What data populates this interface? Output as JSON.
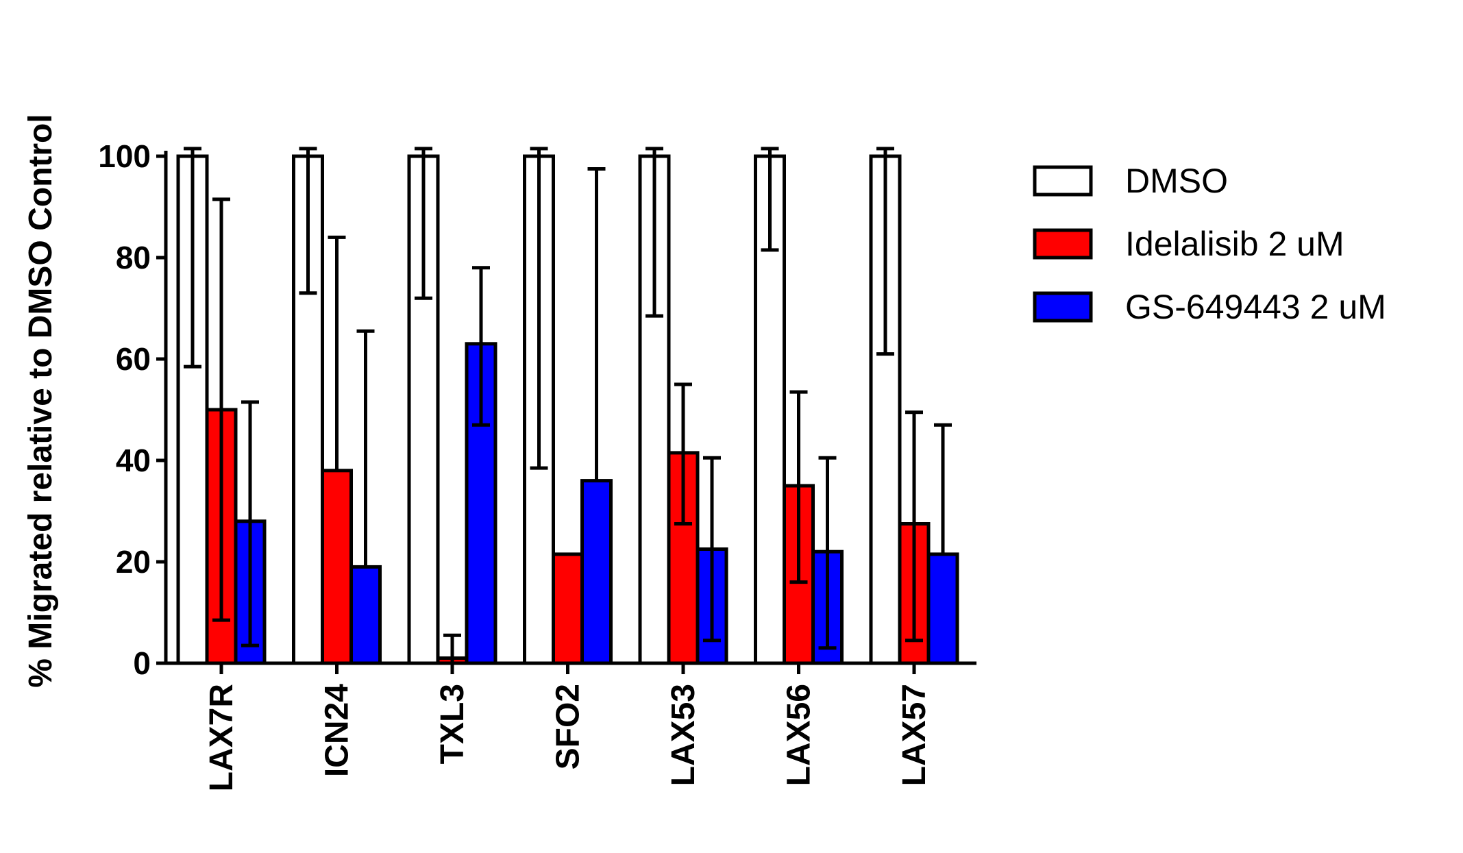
{
  "chart_data": {
    "type": "bar",
    "title": "",
    "xlabel": "",
    "ylabel": "% Migrated relative to  DMSO Control",
    "ylim": [
      0,
      100
    ],
    "yticks": [
      0,
      20,
      40,
      60,
      80,
      100
    ],
    "grid": false,
    "legend_position": "right",
    "categories": [
      "LAX7R",
      "ICN24",
      "TXL3",
      "SFO2",
      "LAX53",
      "LAX56",
      "LAX57"
    ],
    "series": [
      {
        "name": "DMSO",
        "color": "#ffffff",
        "values": [
          100,
          100,
          100,
          100,
          100,
          100,
          100
        ],
        "error_low": [
          58.5,
          73,
          72,
          38.5,
          68.5,
          81.5,
          61
        ],
        "error_high": [
          101.5,
          101.5,
          101.5,
          101.5,
          101.5,
          101.5,
          101.5
        ]
      },
      {
        "name": "Idelalisib 2 uM",
        "color": "#ff0000",
        "values": [
          50,
          38,
          1,
          21.5,
          41.5,
          35,
          27.5
        ],
        "error_low": [
          8.5,
          null,
          0,
          null,
          27.5,
          16,
          4.5
        ],
        "error_high": [
          91.5,
          84,
          5.5,
          null,
          55,
          53.5,
          49.5
        ]
      },
      {
        "name": "GS-649443 2 uM",
        "color": "#0000ff",
        "values": [
          28,
          19,
          63,
          36,
          22.5,
          22,
          21.5
        ],
        "error_low": [
          3.5,
          null,
          47,
          null,
          4.5,
          3,
          null
        ],
        "error_high": [
          51.5,
          65.5,
          78,
          97.5,
          40.5,
          40.5,
          47
        ]
      }
    ]
  }
}
